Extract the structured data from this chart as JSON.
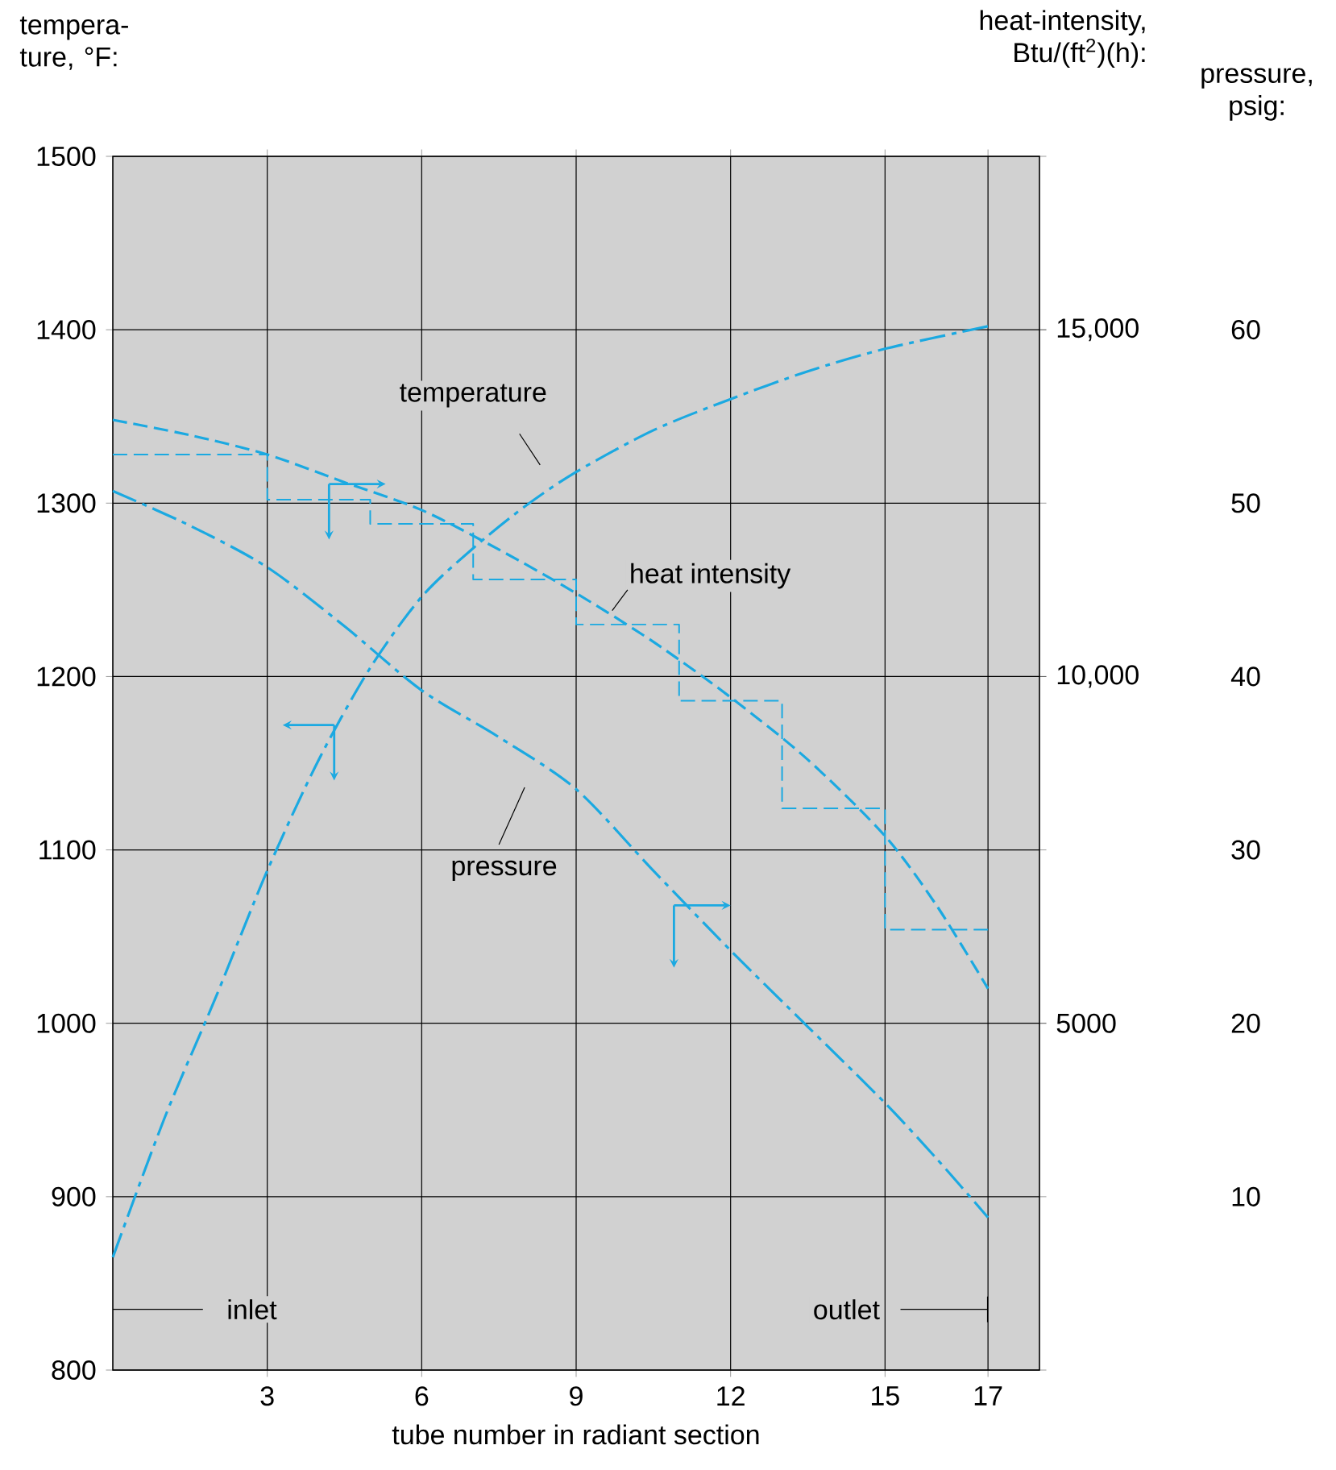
{
  "chart_data": {
    "type": "line",
    "xlabel": "tube number in radiant section",
    "ylabel": "tempera-ture, °F:",
    "y2label": "heat-intensity, Btu/(ft$^{2}$)(h):",
    "y3label": "pressure, psig:",
    "xlim": [
      0,
      18
    ],
    "xticks": [
      3,
      6,
      9,
      12,
      15,
      17
    ],
    "ylim": [
      800,
      1500
    ],
    "yticks": [
      800,
      900,
      1000,
      1100,
      1200,
      1300,
      1400,
      1500
    ],
    "y2lim": [
      0,
      17500
    ],
    "y2ticks": [
      5000,
      {
        "value": 10000,
        "label": "10,000"
      },
      {
        "value": 15000,
        "label": "15,000"
      }
    ],
    "y3lim": [
      0,
      70
    ],
    "y3ticks": [
      10,
      20,
      30,
      40,
      50,
      60
    ],
    "grid": true,
    "annotations": [
      "inlet",
      "outlet"
    ],
    "series": [
      {
        "name": "temperature",
        "color": "#1ba9e1",
        "line_style": "dashdot",
        "x": [
          0,
          1,
          2,
          3,
          4,
          5,
          6,
          7,
          8,
          9,
          10.5,
          12,
          13.5,
          15,
          17
        ],
        "values": [
          865,
          945,
          1015,
          1088,
          1152,
          1205,
          1246,
          1274,
          1298,
          1318,
          1342,
          1360,
          1376,
          1389,
          1402
        ]
      },
      {
        "name": "heat intensity",
        "color": "#1ba9e1",
        "line_style": "dashed",
        "axis": "y2",
        "x": [
          0,
          1.5,
          3,
          4.5,
          6,
          7.5,
          9,
          10.5,
          12,
          13.5,
          15,
          16,
          17
        ],
        "values": [
          13700,
          13480,
          13200,
          12800,
          12400,
          11830,
          11200,
          10500,
          9700,
          8800,
          7700,
          6700,
          5500
        ]
      },
      {
        "type": "step",
        "color": "#1ba9e1",
        "line_style": "dashed",
        "axis": "y2",
        "x": [
          0,
          3,
          5,
          7,
          9,
          11,
          13,
          15,
          17
        ],
        "values": [
          13200,
          12550,
          12200,
          11400,
          10750,
          9650,
          8100,
          6350,
          6350
        ]
      },
      {
        "name": "pressure",
        "color": "#1ba9e1",
        "line_style": "dashdot",
        "axis": "y3",
        "x": [
          0,
          1.5,
          3,
          4.5,
          6,
          7.5,
          9,
          10.5,
          12,
          13.5,
          15,
          16,
          17
        ],
        "values": [
          50.7,
          48.7,
          46.3,
          42.9,
          39.2,
          36.5,
          33.5,
          28.8,
          24.2,
          19.8,
          15.4,
          12.2,
          8.8
        ]
      }
    ]
  }
}
